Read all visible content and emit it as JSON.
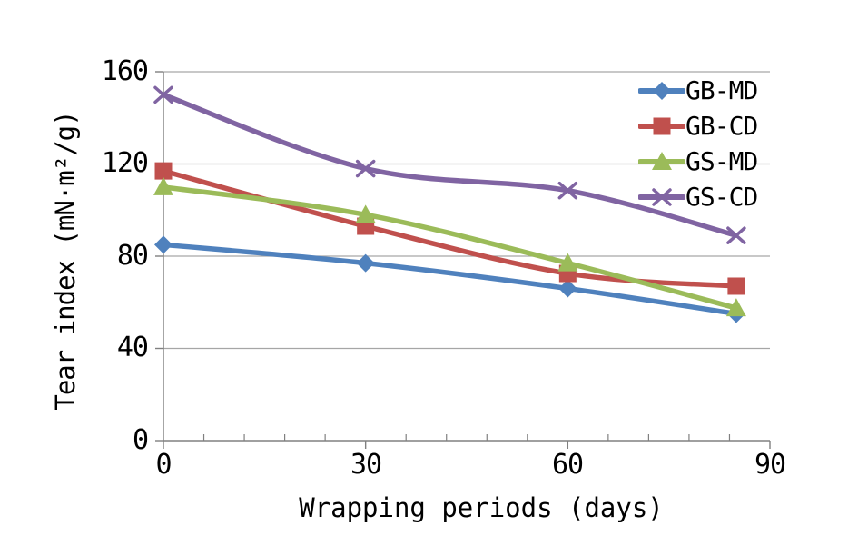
{
  "chart_data": {
    "type": "line",
    "title": "",
    "xlabel": "Wrapping periods (days)",
    "ylabel": "Tear index (mN·m²/g)",
    "x": [
      0,
      30,
      60,
      85
    ],
    "series": [
      {
        "name": "GB-MD",
        "color": "#4F81BD",
        "marker": "diamond",
        "values": [
          85,
          77,
          66,
          55
        ]
      },
      {
        "name": "GB-CD",
        "color": "#C0504D",
        "marker": "square",
        "values": [
          117,
          93,
          72.5,
          67
        ]
      },
      {
        "name": "GS-MD",
        "color": "#9BBB59",
        "marker": "triangle",
        "values": [
          110,
          98,
          77,
          57.5
        ]
      },
      {
        "name": "GS-CD",
        "color": "#8064A2",
        "marker": "x",
        "values": [
          150,
          118,
          108.5,
          89
        ]
      }
    ],
    "xlim": [
      0,
      90
    ],
    "ylim": [
      0,
      160
    ],
    "xticks": [
      0,
      30,
      60,
      90
    ],
    "yticks": [
      0,
      40,
      80,
      120,
      160
    ],
    "x_minor_tick_step": 6,
    "grid": "horizontal",
    "smoothed_lines": true,
    "legend_position": "inside-top-right",
    "gridline_color": "#A6A6A6",
    "axis_color": "#808080",
    "background_color": "#FFFFFF"
  },
  "labels": {
    "yticks": [
      "160",
      "120",
      "80",
      "40",
      "0"
    ],
    "xticks": [
      "0",
      "30",
      "60",
      "90"
    ]
  }
}
